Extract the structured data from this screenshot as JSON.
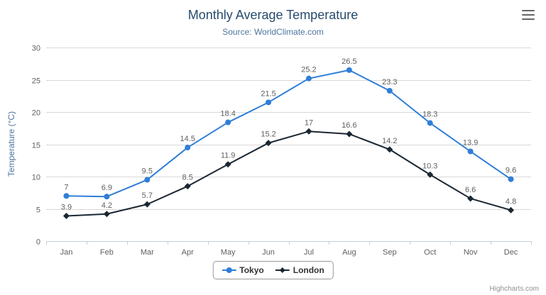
{
  "chart_data": {
    "type": "line",
    "title": "Monthly Average Temperature",
    "subtitle": "Source: WorldClimate.com",
    "categories": [
      "Jan",
      "Feb",
      "Mar",
      "Apr",
      "May",
      "Jun",
      "Jul",
      "Aug",
      "Sep",
      "Oct",
      "Nov",
      "Dec"
    ],
    "series": [
      {
        "name": "Tokyo",
        "marker": "circle",
        "color": "#2f7ed8",
        "values": [
          7,
          6.9,
          9.5,
          14.5,
          18.4,
          21.5,
          25.2,
          26.5,
          23.3,
          18.3,
          13.9,
          9.6
        ]
      },
      {
        "name": "London",
        "marker": "diamond",
        "color": "#1a2733",
        "values": [
          3.9,
          4.2,
          5.7,
          8.5,
          11.9,
          15.2,
          17,
          16.6,
          14.2,
          10.3,
          6.6,
          4.8
        ]
      }
    ],
    "xlabel": "",
    "ylabel": "Temperature (°C)",
    "ylim": [
      0,
      30
    ],
    "yticks": [
      0,
      5,
      10,
      15,
      20,
      25,
      30
    ],
    "grid": true,
    "data_labels": true,
    "legend_position": "bottom"
  },
  "credits": {
    "label": "Highcharts.com"
  },
  "export_menu": {
    "icon": "hamburger-menu-icon"
  },
  "colors": {
    "title": "#274b6d",
    "subtitle": "#4d759e",
    "axis_label": "#606060",
    "gridline": "#d8d8d8",
    "axis_line": "#c0d0e0",
    "legend_text": "#333333"
  }
}
